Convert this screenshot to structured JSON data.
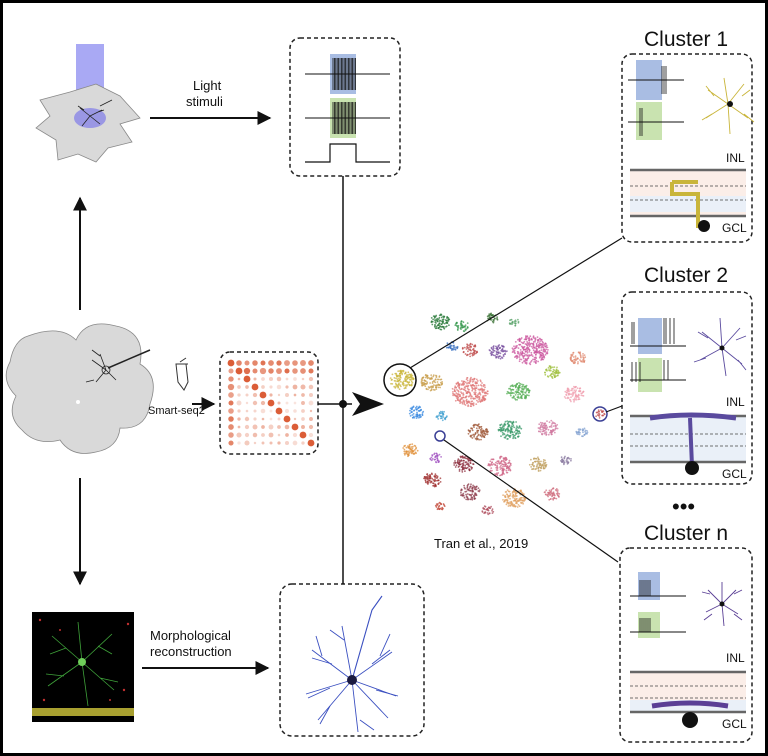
{
  "labels": {
    "light_stimuli_line1": "Light",
    "light_stimuli_line2": "stimuli",
    "smart_seq2": "Smart-seq2",
    "morph_line1": "Morphological",
    "morph_line2": "reconstruction",
    "citation": "Tran et al., 2019"
  },
  "clusters": [
    {
      "title": "Cluster 1",
      "inl": "INL",
      "gcl": "GCL",
      "color": "#c9b53a"
    },
    {
      "title": "Cluster 2",
      "inl": "INL",
      "gcl": "GCL",
      "color": "#5a4a9e"
    },
    {
      "title": "Cluster n",
      "inl": "INL",
      "gcl": "GCL",
      "color": "#5a3f95"
    }
  ],
  "ellipsis": "•••",
  "colors": {
    "panel_bg": "#ffffff",
    "retina_fill": "#d9d9d9",
    "light_beam": "#8f8ff0",
    "stim_blue": "#a9bde3",
    "stim_green": "#c9e3b0",
    "morph_blue": "#3a4fc0",
    "heatmap": "#d9542c"
  }
}
